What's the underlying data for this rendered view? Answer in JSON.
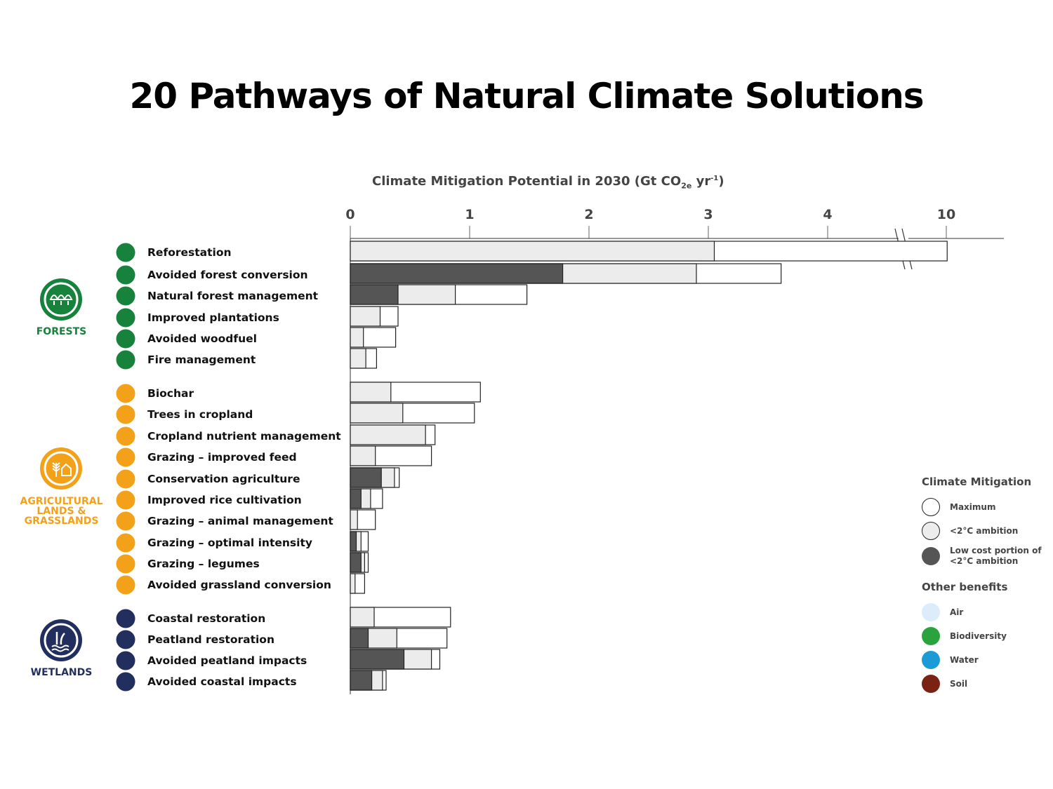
{
  "title": "20 Pathways of Natural Climate Solutions",
  "axis_title": {
    "main": "Climate Mitigation Potential in 2030 (Gt CO",
    "sub": "2e",
    "mid": " yr",
    "sup": "-1",
    "end": ")"
  },
  "categories": [
    {
      "name": "FORESTS",
      "lines": [
        "FORESTS"
      ],
      "color": "#17823b",
      "icon": "trees-icon"
    },
    {
      "name": "AGRICULTURAL LANDS & GRASSLANDS",
      "lines": [
        "AGRICULTURAL",
        "LANDS &",
        "GRASSLANDS"
      ],
      "color": "#f4a11a",
      "icon": "wheat-field-icon"
    },
    {
      "name": "WETLANDS",
      "lines": [
        "WETLANDS"
      ],
      "color": "#222f5e",
      "icon": "marsh-water-icon"
    }
  ],
  "legend": {
    "mitigation_title": "Climate Mitigation",
    "mitigation_items": [
      {
        "label": "Maximum",
        "fill": "#ffffff",
        "stroke": "#222222"
      },
      {
        "label": "<2°C ambition",
        "fill": "#ececec",
        "stroke": "#222222"
      },
      {
        "label": "Low cost portion of <2°C ambition",
        "label_lines": [
          "Low cost portion of",
          "<2°C ambition"
        ],
        "fill": "#555555",
        "stroke": "#555555"
      }
    ],
    "benefits_title": "Other benefits",
    "benefit_items": [
      {
        "label": "Air",
        "color": "#dcecfa"
      },
      {
        "label": "Biodiversity",
        "color": "#2aa33f"
      },
      {
        "label": "Water",
        "color": "#1c9ad6"
      },
      {
        "label": "Soil",
        "color": "#7a2214"
      }
    ]
  },
  "chart_data": {
    "type": "bar",
    "orientation": "horizontal",
    "title": "20 Pathways of Natural Climate Solutions",
    "xlabel": "Climate Mitigation Potential in 2030 (Gt CO2e yr-1)",
    "xticks": [
      "0",
      "1",
      "2",
      "3",
      "4",
      "10"
    ],
    "xlim": [
      0,
      10.1
    ],
    "axis_break": "between 4 and 10",
    "series": [
      {
        "name": "Maximum",
        "color": "#ffffff"
      },
      {
        "name": "<2°C ambition",
        "color": "#ececec"
      },
      {
        "name": "Low cost portion of <2°C ambition",
        "color": "#555555"
      }
    ],
    "rows": [
      {
        "label": "Reforestation",
        "category": "FORESTS",
        "max": 10.1,
        "ambition": 3.05,
        "low_cost": 0
      },
      {
        "label": "Avoided forest conversion",
        "category": "FORESTS",
        "max": 3.61,
        "ambition": 2.9,
        "low_cost": 1.78
      },
      {
        "label": "Natural forest management",
        "category": "FORESTS",
        "max": 1.48,
        "ambition": 0.88,
        "low_cost": 0.4
      },
      {
        "label": "Improved plantations",
        "category": "FORESTS",
        "max": 0.4,
        "ambition": 0.25,
        "low_cost": 0
      },
      {
        "label": "Avoided woodfuel",
        "category": "FORESTS",
        "max": 0.38,
        "ambition": 0.11,
        "low_cost": 0
      },
      {
        "label": "Fire management",
        "category": "FORESTS",
        "max": 0.22,
        "ambition": 0.13,
        "low_cost": 0
      },
      {
        "label": "Biochar",
        "category": "AGRICULTURAL LANDS & GRASSLANDS",
        "max": 1.09,
        "ambition": 0.34,
        "low_cost": 0
      },
      {
        "label": "Trees in cropland",
        "category": "AGRICULTURAL LANDS & GRASSLANDS",
        "max": 1.04,
        "ambition": 0.44,
        "low_cost": 0
      },
      {
        "label": "Cropland nutrient management",
        "category": "AGRICULTURAL LANDS & GRASSLANDS",
        "max": 0.71,
        "ambition": 0.63,
        "low_cost": 0
      },
      {
        "label": "Grazing – improved feed",
        "category": "AGRICULTURAL LANDS & GRASSLANDS",
        "max": 0.68,
        "ambition": 0.21,
        "low_cost": 0
      },
      {
        "label": "Conservation agriculture",
        "category": "AGRICULTURAL LANDS & GRASSLANDS",
        "max": 0.41,
        "ambition": 0.37,
        "low_cost": 0.26
      },
      {
        "label": "Improved rice cultivation",
        "category": "AGRICULTURAL LANDS & GRASSLANDS",
        "max": 0.27,
        "ambition": 0.17,
        "low_cost": 0.09
      },
      {
        "label": "Grazing – animal management",
        "category": "AGRICULTURAL LANDS & GRASSLANDS",
        "max": 0.21,
        "ambition": 0.06,
        "low_cost": 0
      },
      {
        "label": "Grazing – optimal intensity",
        "category": "AGRICULTURAL LANDS & GRASSLANDS",
        "max": 0.15,
        "ambition": 0.09,
        "low_cost": 0.05
      },
      {
        "label": "Grazing – legumes",
        "category": "AGRICULTURAL LANDS & GRASSLANDS",
        "max": 0.15,
        "ambition": 0.12,
        "low_cost": 0.09
      },
      {
        "label": "Avoided grassland conversion",
        "category": "AGRICULTURAL LANDS & GRASSLANDS",
        "max": 0.12,
        "ambition": 0.04,
        "low_cost": 0
      },
      {
        "label": "Coastal restoration",
        "category": "WETLANDS",
        "max": 0.84,
        "ambition": 0.2,
        "low_cost": 0
      },
      {
        "label": "Peatland restoration",
        "category": "WETLANDS",
        "max": 0.81,
        "ambition": 0.39,
        "low_cost": 0.15
      },
      {
        "label": "Avoided peatland impacts",
        "category": "WETLANDS",
        "max": 0.75,
        "ambition": 0.68,
        "low_cost": 0.45
      },
      {
        "label": "Avoided coastal impacts",
        "category": "WETLANDS",
        "max": 0.3,
        "ambition": 0.27,
        "low_cost": 0.18
      }
    ]
  }
}
